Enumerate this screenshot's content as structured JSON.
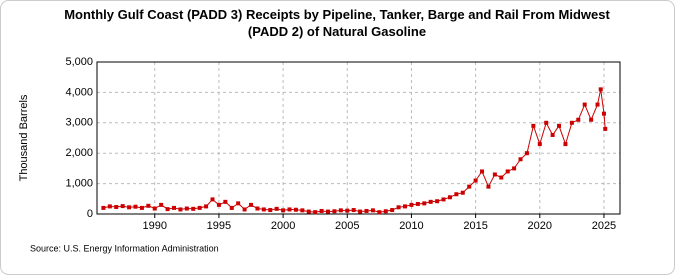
{
  "chart_data": {
    "type": "line",
    "title": "Monthly Gulf Coast (PADD 3)  Receipts by Pipeline, Tanker, Barge and Rail From Midwest (PADD 2) of Natural Gasoline",
    "y_label": "Thousand Barrels",
    "source": "Source: U.S. Energy Information Administration",
    "x": [
      1986,
      1986.5,
      1987,
      1987.5,
      1988,
      1988.5,
      1989,
      1989.5,
      1990,
      1990.5,
      1991,
      1991.5,
      1992,
      1992.5,
      1993,
      1993.5,
      1994,
      1994.5,
      1995,
      1995.5,
      1996,
      1996.5,
      1997,
      1997.5,
      1998,
      1998.5,
      1999,
      1999.5,
      2000,
      2000.5,
      2001,
      2001.5,
      2002,
      2002.5,
      2003,
      2003.5,
      2004,
      2004.5,
      2005,
      2005.5,
      2006,
      2006.5,
      2007,
      2007.5,
      2008,
      2008.5,
      2009,
      2009.5,
      2010,
      2010.5,
      2011,
      2011.5,
      2012,
      2012.5,
      2013,
      2013.5,
      2014,
      2014.5,
      2015,
      2015.5,
      2016,
      2016.5,
      2017,
      2017.5,
      2018,
      2018.5,
      2019,
      2019.5,
      2020,
      2020.5,
      2021,
      2021.5,
      2022,
      2022.5,
      2023,
      2023.5,
      2024,
      2024.5,
      2024.75,
      2025,
      2025.1
    ],
    "series": [
      {
        "name": "Natural Gasoline",
        "color": "#cc0000",
        "values": [
          200,
          250,
          230,
          260,
          220,
          240,
          200,
          270,
          180,
          300,
          160,
          200,
          150,
          180,
          170,
          200,
          250,
          480,
          300,
          400,
          200,
          350,
          150,
          300,
          180,
          150,
          130,
          170,
          120,
          150,
          140,
          120,
          80,
          60,
          100,
          80,
          90,
          120,
          110,
          130,
          80,
          100,
          120,
          60,
          90,
          130,
          220,
          250,
          300,
          330,
          350,
          400,
          420,
          480,
          550,
          650,
          700,
          900,
          1100,
          1400,
          900,
          1300,
          1200,
          1400,
          1500,
          1800,
          2000,
          2900,
          2300,
          3000,
          2600,
          2900,
          2300,
          3000,
          3100,
          3600,
          3100,
          3600,
          4100,
          3300,
          2800
        ]
      }
    ],
    "xlim": [
      1985.5,
      2026.25
    ],
    "xticks": [
      1990,
      1995,
      2000,
      2005,
      2010,
      2015,
      2020,
      2025
    ],
    "ylim": [
      0,
      5000
    ],
    "yticks": [
      0,
      {
        "value": 1000,
        "label": "1,000"
      },
      {
        "value": 2000,
        "label": "2,000"
      },
      {
        "value": 3000,
        "label": "3,000"
      },
      {
        "value": 4000,
        "label": "4,000"
      },
      {
        "value": 5000,
        "label": "5,000"
      }
    ],
    "grid": true
  }
}
